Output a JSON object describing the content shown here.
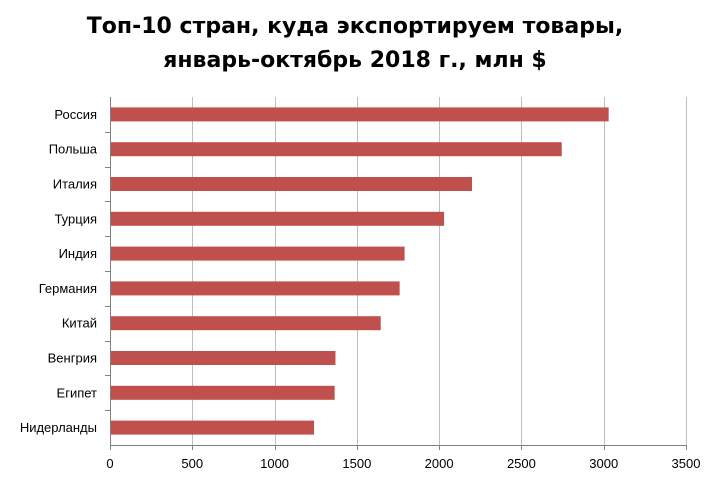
{
  "chart_data": {
    "type": "bar",
    "orientation": "horizontal",
    "title_lines": [
      "Топ-10 стран, куда экспортируем товары,",
      "январь-октябрь 2018 г., млн $"
    ],
    "categories": [
      "Россия",
      "Польша",
      "Италия",
      "Турция",
      "Индия",
      "Германия",
      "Китай",
      "Венгрия",
      "Египет",
      "Нидерланды"
    ],
    "values": [
      3030,
      2745,
      2200,
      2030,
      1790,
      1760,
      1645,
      1370,
      1365,
      1240
    ],
    "xlim": [
      0,
      3500
    ],
    "x_ticks": [
      0,
      500,
      1000,
      1500,
      2000,
      2500,
      3000,
      3500
    ],
    "xlabel": "",
    "ylabel": "",
    "grid": true,
    "legend": "none",
    "bar_color": "#c0504d",
    "grid_color": "#bfbfbf",
    "axis_color": "#808080"
  }
}
